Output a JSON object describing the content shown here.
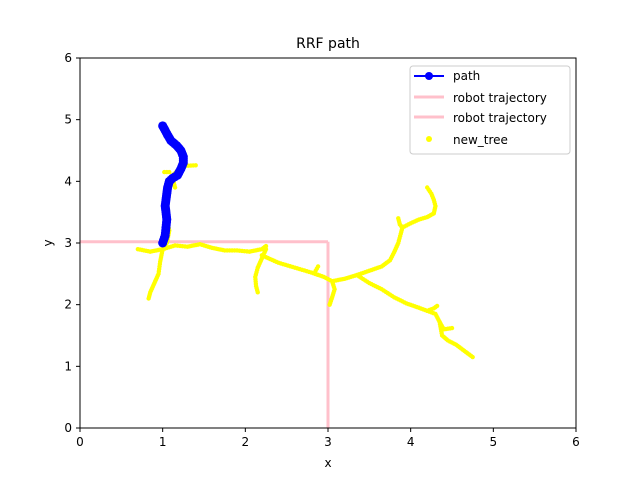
{
  "chart_data": {
    "type": "scatter",
    "title": "RRF path",
    "xlabel": "x",
    "ylabel": "y",
    "xlim": [
      0,
      6
    ],
    "ylim": [
      0,
      6
    ],
    "xticks": [
      "0",
      "1",
      "2",
      "3",
      "4",
      "5",
      "6"
    ],
    "yticks": [
      "0",
      "1",
      "2",
      "3",
      "4",
      "5",
      "6"
    ],
    "grid": false,
    "legend_position": "top-right",
    "series": [
      {
        "name": "path",
        "kind": "line-markers",
        "color": "#0000ff",
        "points": [
          [
            1.0,
            3.0
          ],
          [
            1.03,
            3.12
          ],
          [
            1.04,
            3.25
          ],
          [
            1.05,
            3.38
          ],
          [
            1.04,
            3.5
          ],
          [
            1.03,
            3.6
          ],
          [
            1.04,
            3.7
          ],
          [
            1.05,
            3.8
          ],
          [
            1.06,
            3.9
          ],
          [
            1.08,
            4.0
          ],
          [
            1.12,
            4.05
          ],
          [
            1.18,
            4.1
          ],
          [
            1.22,
            4.2
          ],
          [
            1.25,
            4.3
          ],
          [
            1.25,
            4.4
          ],
          [
            1.22,
            4.5
          ],
          [
            1.17,
            4.58
          ],
          [
            1.1,
            4.66
          ],
          [
            1.06,
            4.75
          ],
          [
            1.02,
            4.85
          ],
          [
            1.0,
            4.9
          ]
        ]
      },
      {
        "name": "robot trajectory",
        "kind": "line",
        "color": "#ffc0cb",
        "points": [
          [
            0,
            3.02
          ],
          [
            3.0,
            3.02
          ]
        ]
      },
      {
        "name": "robot trajectory",
        "kind": "line",
        "color": "#ffc0cb",
        "points": [
          [
            3.0,
            3.02
          ],
          [
            3.0,
            0
          ]
        ]
      },
      {
        "name": "new_tree",
        "kind": "scatter",
        "color": "#ffff00",
        "branches": [
          [
            [
              0.7,
              2.9
            ],
            [
              0.85,
              2.86
            ],
            [
              1.0,
              2.9
            ],
            [
              1.15,
              2.96
            ],
            [
              1.3,
              2.94
            ],
            [
              1.45,
              2.98
            ],
            [
              1.6,
              2.92
            ],
            [
              1.75,
              2.88
            ],
            [
              1.9,
              2.88
            ],
            [
              2.05,
              2.86
            ],
            [
              2.2,
              2.9
            ],
            [
              2.25,
              2.95
            ]
          ],
          [
            [
              1.0,
              2.9
            ],
            [
              0.97,
              2.7
            ],
            [
              0.95,
              2.5
            ],
            [
              0.9,
              2.35
            ],
            [
              0.85,
              2.2
            ],
            [
              0.83,
              2.1
            ]
          ],
          [
            [
              2.25,
              2.9
            ],
            [
              2.2,
              2.75
            ],
            [
              2.15,
              2.6
            ],
            [
              2.12,
              2.45
            ],
            [
              2.13,
              2.3
            ],
            [
              2.15,
              2.2
            ]
          ],
          [
            [
              2.2,
              2.8
            ],
            [
              2.4,
              2.68
            ],
            [
              2.6,
              2.6
            ],
            [
              2.8,
              2.52
            ],
            [
              2.95,
              2.45
            ],
            [
              3.05,
              2.38
            ],
            [
              3.2,
              2.42
            ],
            [
              3.35,
              2.48
            ]
          ],
          [
            [
              2.85,
              2.55
            ],
            [
              2.88,
              2.62
            ]
          ],
          [
            [
              3.05,
              2.38
            ],
            [
              3.08,
              2.25
            ],
            [
              3.05,
              2.12
            ],
            [
              3.02,
              2.0
            ]
          ],
          [
            [
              3.35,
              2.48
            ],
            [
              3.5,
              2.55
            ],
            [
              3.65,
              2.62
            ],
            [
              3.75,
              2.72
            ],
            [
              3.8,
              2.85
            ],
            [
              3.85,
              3.0
            ],
            [
              3.88,
              3.15
            ],
            [
              3.9,
              3.25
            ],
            [
              3.87,
              3.3
            ]
          ],
          [
            [
              3.87,
              3.3
            ],
            [
              3.85,
              3.4
            ]
          ],
          [
            [
              3.9,
              3.25
            ],
            [
              4.0,
              3.32
            ],
            [
              4.1,
              3.38
            ],
            [
              4.2,
              3.42
            ],
            [
              4.28,
              3.48
            ],
            [
              4.3,
              3.6
            ],
            [
              4.28,
              3.7
            ],
            [
              4.25,
              3.8
            ],
            [
              4.2,
              3.9
            ]
          ],
          [
            [
              3.35,
              2.48
            ],
            [
              3.5,
              2.35
            ],
            [
              3.65,
              2.25
            ],
            [
              3.8,
              2.12
            ],
            [
              3.95,
              2.02
            ],
            [
              4.1,
              1.95
            ],
            [
              4.2,
              1.9
            ],
            [
              4.3,
              1.85
            ],
            [
              4.35,
              1.72
            ],
            [
              4.4,
              1.6
            ],
            [
              4.5,
              1.62
            ]
          ],
          [
            [
              4.35,
              1.72
            ],
            [
              4.38,
              1.5
            ],
            [
              4.45,
              1.42
            ],
            [
              4.55,
              1.35
            ],
            [
              4.65,
              1.25
            ],
            [
              4.75,
              1.15
            ]
          ],
          [
            [
              4.2,
              1.9
            ],
            [
              4.28,
              1.94
            ],
            [
              4.32,
              1.98
            ]
          ],
          [
            [
              1.0,
              2.9
            ],
            [
              1.05,
              3.0
            ],
            [
              1.08,
              3.2
            ],
            [
              1.02,
              3.6
            ],
            [
              1.05,
              3.95
            ],
            [
              1.12,
              4.1
            ],
            [
              1.25,
              4.25
            ],
            [
              1.4,
              4.26
            ]
          ],
          [
            [
              1.02,
              4.15
            ],
            [
              1.08,
              4.15
            ]
          ],
          [
            [
              1.12,
              4.05
            ],
            [
              1.15,
              3.9
            ]
          ]
        ]
      }
    ]
  }
}
